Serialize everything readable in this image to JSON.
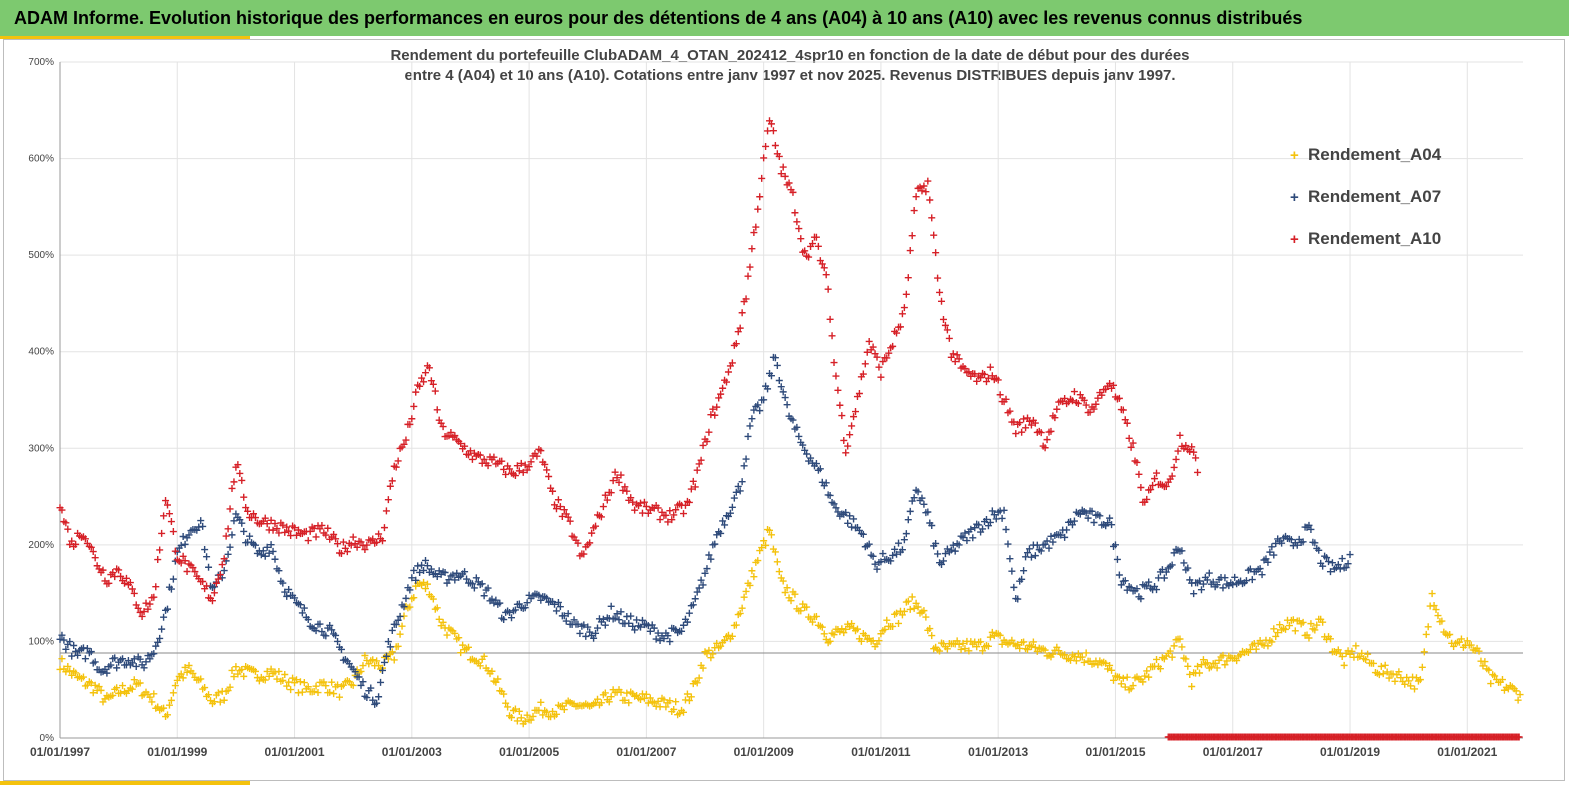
{
  "banner": {
    "title": "ADAM Informe. Evolution historique des performances en euros pour des détentions de 4 ans (A04) à 10 ans (A10) avec les revenus connus distribués"
  },
  "chart_data": {
    "type": "scatter",
    "title_line1": "Rendement du portefeuille ClubADAM_4_OTAN_202412_4spr10  en fonction de la date de début pour des durées",
    "title_line2": "entre 4 (A04) et 10 ans (A10). Cotations entre janv 1997 et nov 2025. Revenus DISTRIBUES depuis janv 1997.",
    "xlabel": "",
    "ylabel": "",
    "xlim": [
      "01/01/1997",
      "31/12/2021"
    ],
    "ylim": [
      0,
      700
    ],
    "y_ticks": [
      "0%",
      "100%",
      "200%",
      "300%",
      "400%",
      "500%",
      "600%",
      "700%"
    ],
    "x_ticks": [
      "01/01/1997",
      "01/01/1999",
      "01/01/2001",
      "01/01/2003",
      "01/01/2005",
      "01/01/2007",
      "01/01/2009",
      "01/01/2011",
      "01/01/2013",
      "01/01/2015",
      "01/01/2017",
      "01/01/2019",
      "01/01/2021"
    ],
    "reference_line_y": 88,
    "grid": true,
    "legend_position": "top-right",
    "series": [
      {
        "name": "Rendement_A04",
        "color": "#f4c20d",
        "points": [
          [
            1997.0,
            78
          ],
          [
            1997.3,
            62
          ],
          [
            1997.6,
            52
          ],
          [
            1997.8,
            38
          ],
          [
            1998.0,
            48
          ],
          [
            1998.3,
            55
          ],
          [
            1998.6,
            40
          ],
          [
            1998.8,
            22
          ],
          [
            1999.0,
            62
          ],
          [
            1999.2,
            70
          ],
          [
            1999.4,
            55
          ],
          [
            1999.6,
            38
          ],
          [
            1999.8,
            45
          ],
          [
            2000.0,
            72
          ],
          [
            2000.3,
            65
          ],
          [
            2000.6,
            68
          ],
          [
            2000.9,
            58
          ],
          [
            2001.2,
            50
          ],
          [
            2001.5,
            55
          ],
          [
            2001.8,
            48
          ],
          [
            2002.0,
            58
          ],
          [
            2002.2,
            80
          ],
          [
            2002.5,
            75
          ],
          [
            2002.7,
            85
          ],
          [
            2002.9,
            130
          ],
          [
            2003.1,
            160
          ],
          [
            2003.3,
            155
          ],
          [
            2003.5,
            120
          ],
          [
            2003.7,
            105
          ],
          [
            2003.9,
            90
          ],
          [
            2004.1,
            85
          ],
          [
            2004.3,
            75
          ],
          [
            2004.5,
            50
          ],
          [
            2004.7,
            25
          ],
          [
            2004.9,
            20
          ],
          [
            2005.2,
            30
          ],
          [
            2005.5,
            28
          ],
          [
            2005.8,
            35
          ],
          [
            2006.1,
            30
          ],
          [
            2006.4,
            45
          ],
          [
            2006.7,
            42
          ],
          [
            2007.0,
            40
          ],
          [
            2007.3,
            35
          ],
          [
            2007.6,
            30
          ],
          [
            2007.8,
            50
          ],
          [
            2008.0,
            85
          ],
          [
            2008.3,
            95
          ],
          [
            2008.5,
            115
          ],
          [
            2008.7,
            150
          ],
          [
            2008.9,
            185
          ],
          [
            2009.1,
            215
          ],
          [
            2009.3,
            160
          ],
          [
            2009.5,
            145
          ],
          [
            2009.7,
            130
          ],
          [
            2009.9,
            125
          ],
          [
            2010.1,
            105
          ],
          [
            2010.3,
            110
          ],
          [
            2010.5,
            112
          ],
          [
            2010.7,
            105
          ],
          [
            2010.9,
            100
          ],
          [
            2011.1,
            120
          ],
          [
            2011.3,
            125
          ],
          [
            2011.5,
            140
          ],
          [
            2011.7,
            135
          ],
          [
            2011.9,
            95
          ],
          [
            2012.1,
            92
          ],
          [
            2012.4,
            95
          ],
          [
            2012.7,
            95
          ],
          [
            2012.9,
            105
          ],
          [
            2013.2,
            98
          ],
          [
            2013.5,
            95
          ],
          [
            2013.8,
            90
          ],
          [
            2014.1,
            88
          ],
          [
            2014.4,
            85
          ],
          [
            2014.7,
            80
          ],
          [
            2014.9,
            70
          ],
          [
            2015.1,
            55
          ],
          [
            2015.4,
            58
          ],
          [
            2015.7,
            75
          ],
          [
            2015.9,
            85
          ],
          [
            2016.1,
            100
          ],
          [
            2016.3,
            60
          ],
          [
            2016.5,
            75
          ],
          [
            2016.8,
            80
          ],
          [
            2017.0,
            85
          ],
          [
            2017.3,
            90
          ],
          [
            2017.5,
            95
          ],
          [
            2017.8,
            115
          ],
          [
            2018.0,
            120
          ],
          [
            2018.3,
            110
          ],
          [
            2018.5,
            120
          ],
          [
            2018.7,
            95
          ],
          [
            2018.9,
            80
          ],
          [
            2019.1,
            90
          ],
          [
            2019.3,
            80
          ],
          [
            2019.5,
            70
          ],
          [
            2019.8,
            65
          ],
          [
            2020.0,
            60
          ],
          [
            2020.2,
            55
          ],
          [
            2020.4,
            150
          ],
          [
            2020.6,
            115
          ],
          [
            2020.8,
            95
          ],
          [
            2021.0,
            100
          ],
          [
            2021.2,
            85
          ],
          [
            2021.4,
            60
          ],
          [
            2021.6,
            55
          ],
          [
            2021.9,
            45
          ]
        ]
      },
      {
        "name": "Rendement_A07",
        "color": "#2e4a7a",
        "points": [
          [
            1997.0,
            105
          ],
          [
            1997.3,
            85
          ],
          [
            1997.5,
            90
          ],
          [
            1997.7,
            70
          ],
          [
            1997.9,
            78
          ],
          [
            1998.2,
            82
          ],
          [
            1998.4,
            75
          ],
          [
            1998.6,
            90
          ],
          [
            1998.8,
            130
          ],
          [
            1999.0,
            190
          ],
          [
            1999.2,
            215
          ],
          [
            1999.4,
            225
          ],
          [
            1999.6,
            150
          ],
          [
            1999.8,
            175
          ],
          [
            2000.0,
            230
          ],
          [
            2000.2,
            205
          ],
          [
            2000.4,
            190
          ],
          [
            2000.6,
            200
          ],
          [
            2000.8,
            160
          ],
          [
            2001.0,
            140
          ],
          [
            2001.3,
            120
          ],
          [
            2001.6,
            110
          ],
          [
            2001.8,
            90
          ],
          [
            2002.0,
            70
          ],
          [
            2002.2,
            50
          ],
          [
            2002.4,
            40
          ],
          [
            2002.6,
            95
          ],
          [
            2002.8,
            130
          ],
          [
            2003.0,
            165
          ],
          [
            2003.2,
            180
          ],
          [
            2003.5,
            165
          ],
          [
            2003.8,
            170
          ],
          [
            2004.0,
            165
          ],
          [
            2004.3,
            150
          ],
          [
            2004.6,
            125
          ],
          [
            2004.9,
            140
          ],
          [
            2005.2,
            145
          ],
          [
            2005.5,
            135
          ],
          [
            2005.8,
            115
          ],
          [
            2006.1,
            110
          ],
          [
            2006.4,
            130
          ],
          [
            2006.7,
            120
          ],
          [
            2007.0,
            115
          ],
          [
            2007.3,
            105
          ],
          [
            2007.6,
            110
          ],
          [
            2007.8,
            135
          ],
          [
            2008.0,
            170
          ],
          [
            2008.2,
            210
          ],
          [
            2008.4,
            235
          ],
          [
            2008.6,
            260
          ],
          [
            2008.8,
            330
          ],
          [
            2009.0,
            350
          ],
          [
            2009.2,
            395
          ],
          [
            2009.4,
            340
          ],
          [
            2009.6,
            310
          ],
          [
            2009.8,
            290
          ],
          [
            2010.0,
            270
          ],
          [
            2010.2,
            240
          ],
          [
            2010.4,
            230
          ],
          [
            2010.7,
            210
          ],
          [
            2010.9,
            180
          ],
          [
            2011.2,
            190
          ],
          [
            2011.4,
            200
          ],
          [
            2011.6,
            260
          ],
          [
            2011.8,
            230
          ],
          [
            2012.0,
            180
          ],
          [
            2012.3,
            200
          ],
          [
            2012.6,
            215
          ],
          [
            2012.9,
            230
          ],
          [
            2013.1,
            235
          ],
          [
            2013.3,
            140
          ],
          [
            2013.5,
            190
          ],
          [
            2013.8,
            200
          ],
          [
            2014.1,
            210
          ],
          [
            2014.4,
            235
          ],
          [
            2014.7,
            225
          ],
          [
            2014.9,
            225
          ],
          [
            2015.1,
            165
          ],
          [
            2015.4,
            150
          ],
          [
            2015.7,
            160
          ],
          [
            2015.9,
            175
          ],
          [
            2016.1,
            200
          ],
          [
            2016.3,
            155
          ],
          [
            2016.6,
            165
          ],
          [
            2016.9,
            160
          ],
          [
            2017.2,
            165
          ],
          [
            2017.5,
            175
          ],
          [
            2017.8,
            205
          ],
          [
            2018.0,
            200
          ],
          [
            2018.3,
            215
          ],
          [
            2018.5,
            185
          ],
          [
            2018.7,
            175
          ],
          [
            2018.9,
            180
          ],
          [
            2019.0,
            190
          ]
        ]
      },
      {
        "name": "Rendement_A10",
        "color": "#d62027",
        "points": [
          [
            1997.0,
            240
          ],
          [
            1997.2,
            200
          ],
          [
            1997.4,
            215
          ],
          [
            1997.6,
            185
          ],
          [
            1997.8,
            165
          ],
          [
            1998.0,
            175
          ],
          [
            1998.2,
            155
          ],
          [
            1998.4,
            130
          ],
          [
            1998.6,
            145
          ],
          [
            1998.8,
            250
          ],
          [
            1999.0,
            190
          ],
          [
            1999.2,
            175
          ],
          [
            1999.4,
            160
          ],
          [
            1999.6,
            145
          ],
          [
            1999.8,
            190
          ],
          [
            2000.0,
            285
          ],
          [
            2000.2,
            235
          ],
          [
            2000.4,
            225
          ],
          [
            2000.7,
            220
          ],
          [
            2000.9,
            215
          ],
          [
            2001.2,
            210
          ],
          [
            2001.5,
            215
          ],
          [
            2001.8,
            195
          ],
          [
            2002.0,
            205
          ],
          [
            2002.3,
            200
          ],
          [
            2002.5,
            210
          ],
          [
            2002.7,
            280
          ],
          [
            2002.9,
            310
          ],
          [
            2003.1,
            360
          ],
          [
            2003.3,
            385
          ],
          [
            2003.5,
            320
          ],
          [
            2003.8,
            305
          ],
          [
            2004.1,
            290
          ],
          [
            2004.4,
            285
          ],
          [
            2004.7,
            275
          ],
          [
            2004.9,
            280
          ],
          [
            2005.2,
            295
          ],
          [
            2005.4,
            250
          ],
          [
            2005.7,
            220
          ],
          [
            2005.9,
            185
          ],
          [
            2006.2,
            230
          ],
          [
            2006.5,
            275
          ],
          [
            2006.8,
            240
          ],
          [
            2007.1,
            235
          ],
          [
            2007.4,
            230
          ],
          [
            2007.7,
            240
          ],
          [
            2007.9,
            280
          ],
          [
            2008.1,
            330
          ],
          [
            2008.3,
            360
          ],
          [
            2008.5,
            400
          ],
          [
            2008.7,
            460
          ],
          [
            2008.9,
            550
          ],
          [
            2009.1,
            640
          ],
          [
            2009.3,
            590
          ],
          [
            2009.5,
            560
          ],
          [
            2009.7,
            500
          ],
          [
            2009.9,
            515
          ],
          [
            2010.1,
            465
          ],
          [
            2010.2,
            390
          ],
          [
            2010.4,
            300
          ],
          [
            2010.6,
            350
          ],
          [
            2010.8,
            410
          ],
          [
            2011.0,
            380
          ],
          [
            2011.2,
            410
          ],
          [
            2011.4,
            440
          ],
          [
            2011.6,
            560
          ],
          [
            2011.8,
            575
          ],
          [
            2012.0,
            460
          ],
          [
            2012.2,
            400
          ],
          [
            2012.4,
            380
          ],
          [
            2012.7,
            370
          ],
          [
            2012.9,
            380
          ],
          [
            2013.1,
            350
          ],
          [
            2013.3,
            320
          ],
          [
            2013.6,
            330
          ],
          [
            2013.8,
            305
          ],
          [
            2014.0,
            340
          ],
          [
            2014.3,
            355
          ],
          [
            2014.6,
            340
          ],
          [
            2014.9,
            370
          ],
          [
            2015.1,
            340
          ],
          [
            2015.3,
            300
          ],
          [
            2015.5,
            240
          ],
          [
            2015.7,
            270
          ],
          [
            2015.9,
            260
          ],
          [
            2016.1,
            310
          ],
          [
            2016.3,
            300
          ],
          [
            2016.4,
            275
          ]
        ]
      },
      {
        "name": "",
        "color": "#d62027",
        "zero_band": [
          2015.9,
          2021.9
        ]
      }
    ]
  }
}
